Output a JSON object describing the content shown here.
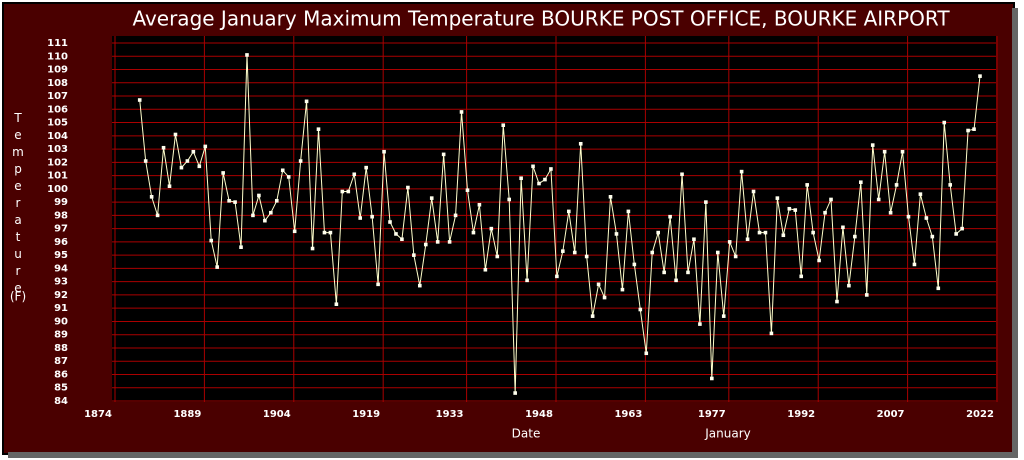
{
  "chart_data": {
    "type": "line",
    "title": "Average January Maximum Temperature   BOURKE POST OFFICE, BOURKE AIRPORT",
    "y_label": "Temperature",
    "y_unit": "(F)",
    "x_label": "Date",
    "x_sublabel": "January",
    "x": [
      1881,
      1882,
      1883,
      1884,
      1885,
      1886,
      1887,
      1888,
      1889,
      1890,
      1891,
      1892,
      1893,
      1894,
      1895,
      1896,
      1897,
      1898,
      1899,
      1900,
      1901,
      1902,
      1903,
      1904,
      1905,
      1906,
      1907,
      1908,
      1909,
      1910,
      1911,
      1912,
      1913,
      1914,
      1915,
      1916,
      1917,
      1918,
      1919,
      1920,
      1921,
      1922,
      1923,
      1924,
      1925,
      1926,
      1927,
      1928,
      1929,
      1930,
      1931,
      1932,
      1933,
      1934,
      1935,
      1936,
      1937,
      1938,
      1939,
      1940,
      1941,
      1942,
      1943,
      1944,
      1945,
      1946,
      1947,
      1948,
      1949,
      1950,
      1951,
      1952,
      1953,
      1954,
      1955,
      1956,
      1957,
      1958,
      1959,
      1960,
      1961,
      1962,
      1963,
      1964,
      1965,
      1966,
      1967,
      1968,
      1969,
      1970,
      1971,
      1972,
      1973,
      1974,
      1975,
      1976,
      1977,
      1978,
      1979,
      1980,
      1981,
      1982,
      1983,
      1984,
      1985,
      1986,
      1987,
      1988,
      1989,
      1990,
      1991,
      1992,
      1993,
      1994,
      1995,
      1996,
      1997,
      1998,
      1999,
      2000,
      2001,
      2002,
      2003,
      2004,
      2005,
      2006,
      2007,
      2008,
      2009,
      2010,
      2011,
      2012,
      2013,
      2014,
      2015,
      2016,
      2017,
      2018,
      2019,
      2020,
      2021,
      2022
    ],
    "series": [
      {
        "name": "Temperature",
        "color": "#ffffcc",
        "marker_color": "#ffffee",
        "values": [
          106.7,
          102.1,
          99.4,
          98.0,
          103.1,
          100.2,
          104.1,
          101.6,
          102.1,
          102.8,
          101.7,
          103.2,
          96.1,
          94.1,
          101.2,
          99.1,
          99.0,
          95.6,
          110.1,
          98.0,
          99.5,
          97.6,
          98.2,
          99.1,
          101.4,
          100.9,
          96.8,
          102.1,
          106.6,
          95.5,
          104.5,
          96.7,
          96.7,
          91.3,
          99.8,
          99.8,
          101.1,
          97.8,
          101.6,
          97.9,
          92.8,
          102.8,
          97.5,
          96.6,
          96.2,
          100.1,
          95.0,
          92.7,
          95.8,
          99.3,
          96.0,
          102.6,
          96.0,
          98.0,
          105.8,
          99.9,
          96.7,
          98.8,
          93.9,
          97.0,
          94.9,
          104.8,
          99.2,
          84.6,
          100.8,
          93.1,
          101.7,
          100.4,
          100.7,
          101.5,
          93.4,
          95.3,
          98.3,
          95.2,
          103.4,
          94.9,
          90.4,
          92.8,
          91.8,
          99.4,
          96.6,
          92.4,
          98.3,
          94.3,
          90.9,
          87.6,
          95.2,
          96.7,
          93.7,
          97.9,
          93.1,
          101.1,
          93.7,
          96.2,
          89.8,
          99.0,
          85.7,
          95.2,
          90.4,
          96.0,
          94.9,
          101.3,
          96.2,
          99.8,
          96.7,
          96.7,
          89.1,
          99.3,
          96.5,
          98.5,
          98.4,
          93.4,
          100.3,
          96.7,
          94.6,
          98.2,
          99.2,
          91.5,
          97.1,
          92.7,
          96.4,
          100.5,
          92.0,
          103.3,
          99.2,
          102.8,
          98.2,
          100.3,
          102.8,
          97.9,
          94.3,
          99.6,
          97.8,
          96.4,
          92.5,
          105.0,
          100.3,
          96.6,
          97.0,
          104.4,
          104.5,
          108.5
        ]
      }
    ],
    "xlim": [
      1874,
      2022
    ],
    "xticks": [
      1874,
      1889,
      1904,
      1919,
      1933,
      1948,
      1963,
      1977,
      1992,
      2007,
      2022
    ],
    "ylim": [
      84,
      111
    ],
    "yticks": [
      84,
      85,
      86,
      87,
      88,
      89,
      90,
      91,
      92,
      93,
      94,
      95,
      96,
      97,
      98,
      99,
      100,
      101,
      102,
      103,
      104,
      105,
      106,
      107,
      108,
      109,
      110,
      111
    ],
    "grid": true
  }
}
